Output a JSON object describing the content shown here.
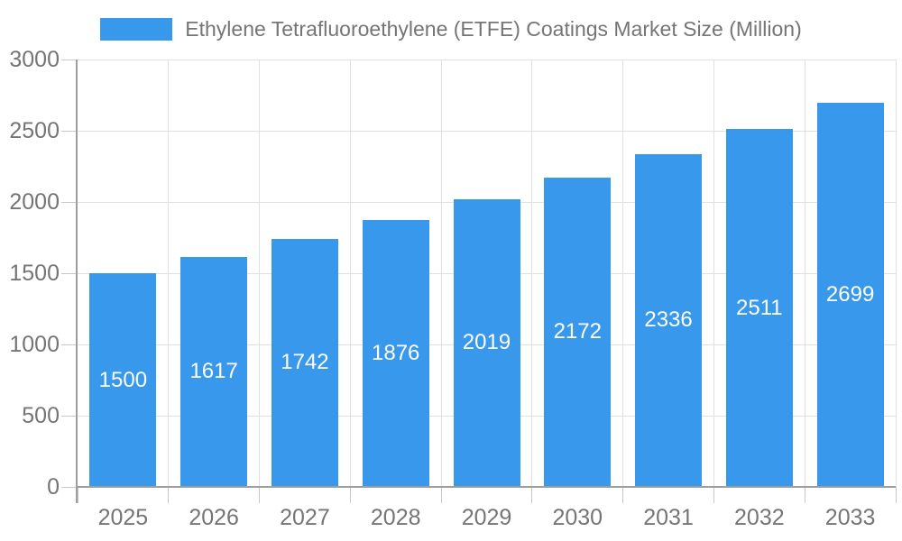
{
  "chart_data": {
    "type": "bar",
    "title": "Ethylene Tetrafluoroethylene (ETFE) Coatings Market Size (Million)",
    "categories": [
      "2025",
      "2026",
      "2027",
      "2028",
      "2029",
      "2030",
      "2031",
      "2032",
      "2033"
    ],
    "values": [
      1500,
      1617,
      1742,
      1876,
      2019,
      2172,
      2336,
      2511,
      2699
    ],
    "xlabel": "",
    "ylabel": "",
    "ylim": [
      0,
      3000
    ],
    "yticks": [
      0,
      500,
      1000,
      1500,
      2000,
      2500,
      3000
    ],
    "grid": true,
    "legend_position": "top",
    "legend_entries": [
      "Ethylene Tetrafluoroethylene (ETFE) Coatings Market Size (Million)"
    ],
    "colors": {
      "bar": "#3898ec",
      "bar_value_label": "#ffffff",
      "axis_line": "#9e9e9e",
      "gridline": "#e0e0e0",
      "tick": "#c8c8c8",
      "axis_text": "#757575",
      "background": "#ffffff"
    }
  }
}
